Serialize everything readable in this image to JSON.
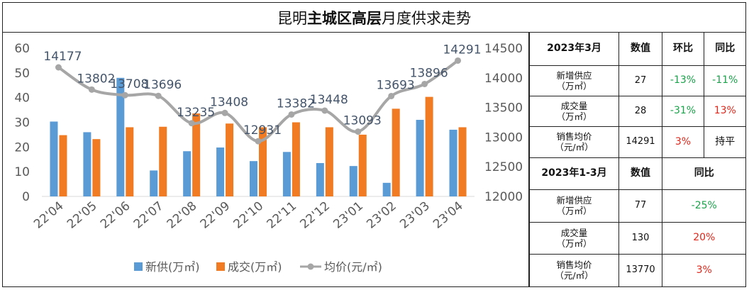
{
  "title": {
    "normal_1": "昆明",
    "bold": "主城区高层",
    "normal_2": "月度供求走势"
  },
  "chart_data": {
    "type": "bar",
    "categories": [
      "22'04",
      "22'05",
      "22'06",
      "22'07",
      "22'08",
      "22'09",
      "22'10",
      "22'11",
      "22'12",
      "23'01",
      "23'02",
      "23'03",
      "23'04"
    ],
    "series": [
      {
        "name": "新供(万㎡)",
        "type": "bar",
        "axis": "left",
        "color": "#5b9bd5",
        "values": [
          30.3,
          26,
          48,
          10.5,
          18.3,
          19.8,
          14.3,
          18,
          13.5,
          12.3,
          5.5,
          31,
          27
        ]
      },
      {
        "name": "成交(万㎡)",
        "type": "bar",
        "axis": "left",
        "color": "#f07b22",
        "values": [
          24.8,
          23.2,
          28,
          28.2,
          33.6,
          29.5,
          28,
          30,
          28,
          25,
          35.5,
          40.3,
          28
        ]
      },
      {
        "name": "均价(元/㎡)",
        "type": "line",
        "axis": "right",
        "color": "#a6a6a6",
        "values": [
          14177,
          13802,
          13708,
          13696,
          13235,
          13408,
          12931,
          13382,
          13448,
          13093,
          13693,
          13896,
          14291
        ],
        "labels": [
          "14177",
          "13802",
          "13708",
          "13696",
          "13235",
          "13408",
          "12931",
          "13382",
          "13448",
          "13093",
          "13693",
          "13896",
          "14291"
        ]
      }
    ],
    "y_left": {
      "min": 0,
      "max": 60,
      "ticks": [
        "0",
        "10",
        "20",
        "30",
        "40",
        "50",
        "60"
      ]
    },
    "y_right": {
      "min": 12000,
      "max": 14500,
      "ticks": [
        "12000",
        "12500",
        "13000",
        "13500",
        "14000",
        "14500"
      ]
    },
    "grid": false,
    "legend_position": "bottom"
  },
  "table": {
    "block1": {
      "header": [
        "2023年3月",
        "数值",
        "环比",
        "同比"
      ],
      "rows": [
        {
          "label_1": "新增供应",
          "label_2": "（万㎡）",
          "value": "27",
          "mom": "-13%",
          "yoy": "-11%"
        },
        {
          "label_1": "成交量",
          "label_2": "（万㎡）",
          "value": "28",
          "mom": "-31%",
          "yoy": "13%"
        },
        {
          "label_1": "销售均价",
          "label_2": "（元/㎡）",
          "value": "14291",
          "mom": "3%",
          "yoy": "持平"
        }
      ]
    },
    "block2": {
      "header": [
        "2023年1-3月",
        "数值",
        "同比"
      ],
      "rows": [
        {
          "label_1": "新增供应",
          "label_2": "（万㎡）",
          "value": "77",
          "yoy": "-25%"
        },
        {
          "label_1": "成交量",
          "label_2": "（万㎡）",
          "value": "130",
          "yoy": "20%"
        },
        {
          "label_1": "销售均价",
          "label_2": "（元/㎡）",
          "value": "13770",
          "yoy": "3%"
        }
      ]
    },
    "colors": {
      "negative": "#1aa34a",
      "positive": "#e0261a",
      "neutral": "#111111"
    }
  }
}
